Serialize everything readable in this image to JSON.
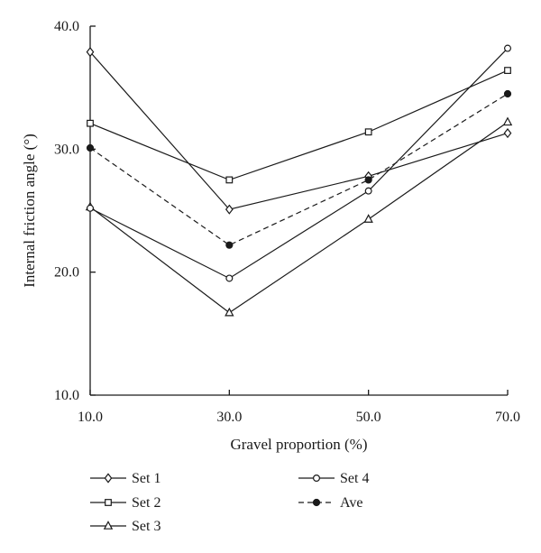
{
  "chart_data": {
    "type": "line",
    "title": "",
    "xlabel": "Gravel proportion (%)",
    "ylabel": "Internal friction angle (°)",
    "x": [
      10,
      30,
      50,
      70
    ],
    "x_tick_labels": [
      "10.0",
      "30.0",
      "50.0",
      "70.0"
    ],
    "xlim": [
      10,
      70
    ],
    "ylim": [
      10,
      40
    ],
    "y_ticks": [
      10,
      20,
      30,
      40
    ],
    "y_tick_labels": [
      "10.0",
      "20.0",
      "30.0",
      "40.0"
    ],
    "grid": false,
    "legend_position": "bottom",
    "series": [
      {
        "name": "Set 1",
        "marker": "diamond",
        "line": "solid",
        "values": [
          37.9,
          25.1,
          27.8,
          31.3
        ]
      },
      {
        "name": "Set 2",
        "marker": "square",
        "line": "solid",
        "values": [
          32.1,
          27.5,
          31.4,
          36.4
        ]
      },
      {
        "name": "Set 3",
        "marker": "triangle",
        "line": "solid",
        "values": [
          25.3,
          16.7,
          24.3,
          32.2
        ]
      },
      {
        "name": "Set 4",
        "marker": "circle-open",
        "line": "solid",
        "values": [
          25.2,
          19.5,
          26.6,
          38.2
        ]
      },
      {
        "name": "Ave",
        "marker": "circle-filled",
        "line": "dashed",
        "values": [
          30.1,
          22.2,
          27.5,
          34.5
        ]
      }
    ]
  }
}
